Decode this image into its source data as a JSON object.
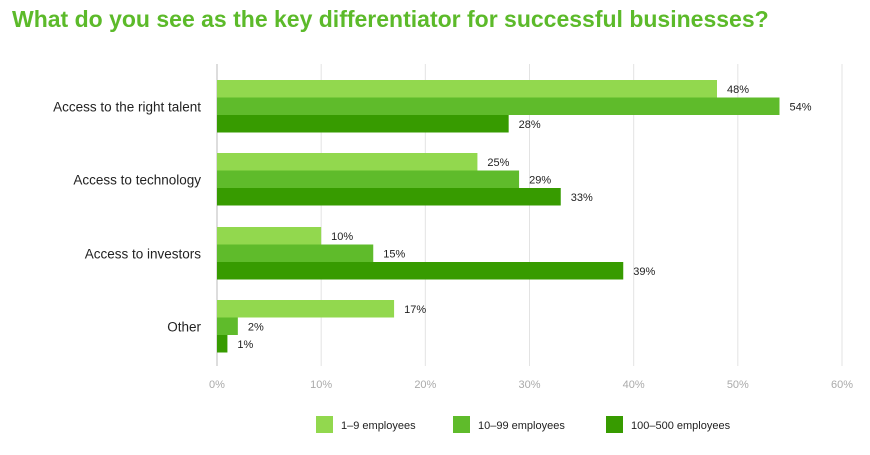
{
  "chart_data": {
    "type": "bar",
    "orientation": "horizontal",
    "title": "What do you see as the key differentiator for successful businesses?",
    "categories": [
      "Access to the right talent",
      "Access to technology",
      "Access to investors",
      "Other"
    ],
    "series": [
      {
        "name": "1–9 employees",
        "color": "#92d84e",
        "values": [
          48,
          25,
          10,
          17
        ]
      },
      {
        "name": "10–99 employees",
        "color": "#5fbb2b",
        "values": [
          54,
          29,
          15,
          2
        ]
      },
      {
        "name": "100–500 employees",
        "color": "#379b00",
        "values": [
          28,
          33,
          39,
          1
        ]
      }
    ],
    "value_suffix": "%",
    "xlim": [
      0,
      60
    ],
    "xticks": [
      "0%",
      "10%",
      "20%",
      "30%",
      "40%",
      "50%",
      "60%"
    ],
    "grid": true,
    "legend_position": "bottom",
    "title_color": "#5cba2a"
  }
}
